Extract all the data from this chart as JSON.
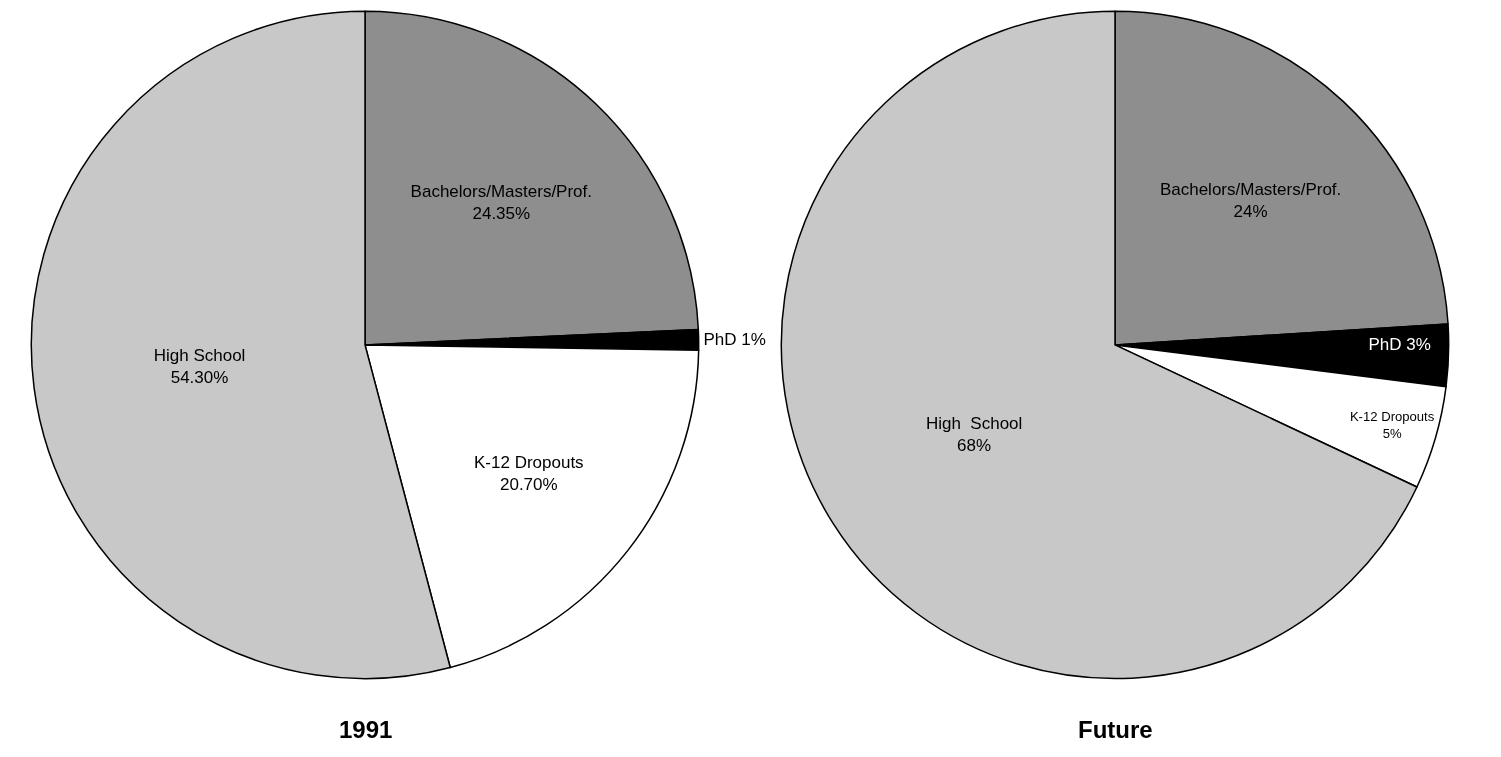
{
  "chart_data": [
    {
      "type": "pie",
      "title": "1991",
      "categories": [
        "Bachelors/Masters/Prof.",
        "PhD",
        "K-12 Dropouts",
        "High School"
      ],
      "values": [
        24.35,
        1,
        20.7,
        54.3
      ],
      "value_labels": [
        "24.35%",
        "1%",
        "20.70%",
        "54.30%"
      ],
      "colors": [
        "#8e8e8e",
        "#000000",
        "#ffffff",
        "#c8c8c8"
      ],
      "legend": false
    },
    {
      "type": "pie",
      "title": "Future",
      "categories": [
        "Bachelors/Masters/Prof.",
        "PhD",
        "K-12 Dropouts",
        "High  School"
      ],
      "values": [
        24,
        3,
        5,
        68
      ],
      "value_labels": [
        "24%",
        "3%",
        "5%",
        "68%"
      ],
      "colors": [
        "#8e8e8e",
        "#000000",
        "#ffffff",
        "#c8c8c8"
      ],
      "legend": false
    }
  ]
}
